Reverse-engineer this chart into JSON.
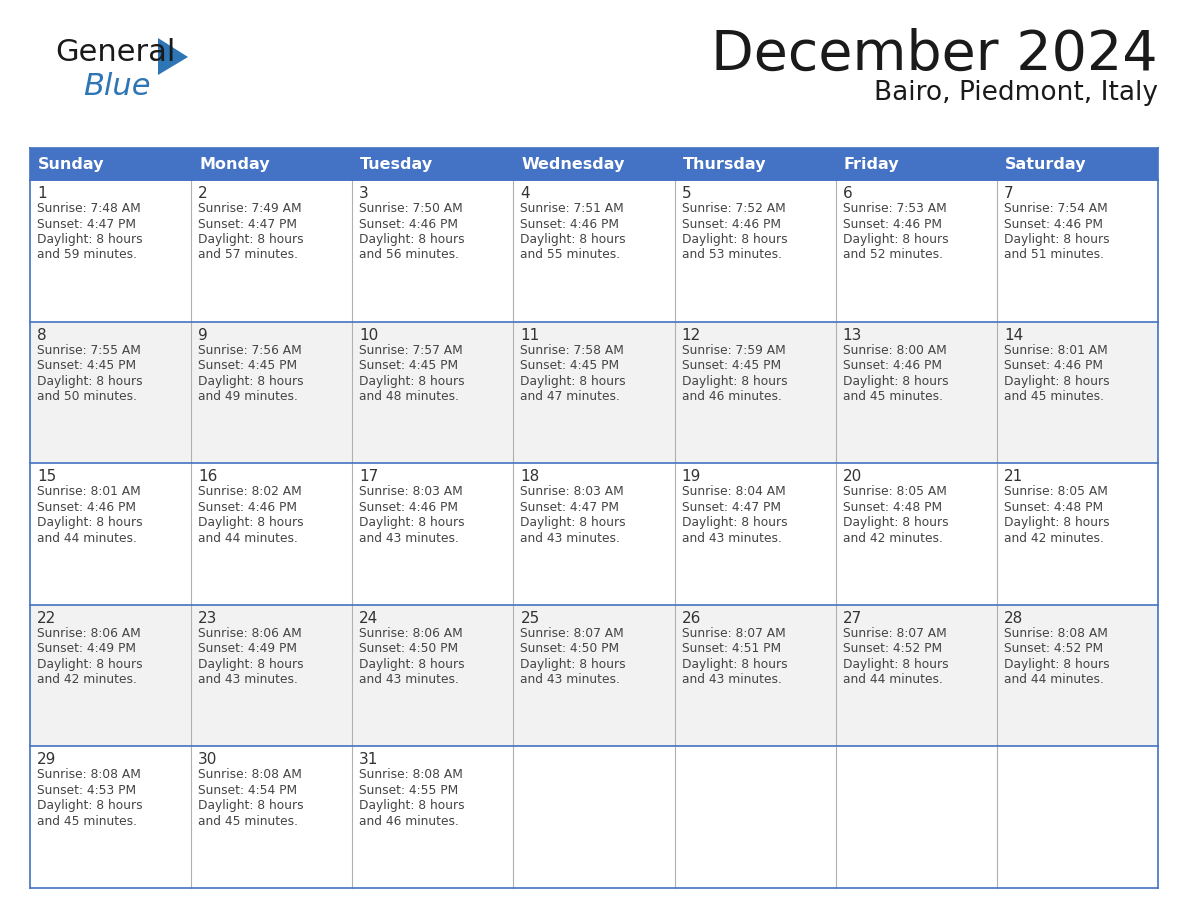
{
  "title": "December 2024",
  "subtitle": "Bairo, Piedmont, Italy",
  "header_bg_color": "#4472C4",
  "header_text_color": "#FFFFFF",
  "day_names": [
    "Sunday",
    "Monday",
    "Tuesday",
    "Wednesday",
    "Thursday",
    "Friday",
    "Saturday"
  ],
  "grid_line_color": "#4472C4",
  "cell_bg_even": "#FFFFFF",
  "cell_bg_odd": "#F2F2F2",
  "date_text_color": "#333333",
  "info_text_color": "#444444",
  "title_color": "#1a1a1a",
  "background_color": "#FFFFFF",
  "logo_black": "#1a1a1a",
  "logo_blue": "#2E75B6",
  "logo_triangle_color": "#2E75B6",
  "weeks": [
    [
      {
        "day": 1,
        "sunrise": "7:48 AM",
        "sunset": "4:47 PM",
        "dl1": "8 hours",
        "dl2": "and 59 minutes."
      },
      {
        "day": 2,
        "sunrise": "7:49 AM",
        "sunset": "4:47 PM",
        "dl1": "8 hours",
        "dl2": "and 57 minutes."
      },
      {
        "day": 3,
        "sunrise": "7:50 AM",
        "sunset": "4:46 PM",
        "dl1": "8 hours",
        "dl2": "and 56 minutes."
      },
      {
        "day": 4,
        "sunrise": "7:51 AM",
        "sunset": "4:46 PM",
        "dl1": "8 hours",
        "dl2": "and 55 minutes."
      },
      {
        "day": 5,
        "sunrise": "7:52 AM",
        "sunset": "4:46 PM",
        "dl1": "8 hours",
        "dl2": "and 53 minutes."
      },
      {
        "day": 6,
        "sunrise": "7:53 AM",
        "sunset": "4:46 PM",
        "dl1": "8 hours",
        "dl2": "and 52 minutes."
      },
      {
        "day": 7,
        "sunrise": "7:54 AM",
        "sunset": "4:46 PM",
        "dl1": "8 hours",
        "dl2": "and 51 minutes."
      }
    ],
    [
      {
        "day": 8,
        "sunrise": "7:55 AM",
        "sunset": "4:45 PM",
        "dl1": "8 hours",
        "dl2": "and 50 minutes."
      },
      {
        "day": 9,
        "sunrise": "7:56 AM",
        "sunset": "4:45 PM",
        "dl1": "8 hours",
        "dl2": "and 49 minutes."
      },
      {
        "day": 10,
        "sunrise": "7:57 AM",
        "sunset": "4:45 PM",
        "dl1": "8 hours",
        "dl2": "and 48 minutes."
      },
      {
        "day": 11,
        "sunrise": "7:58 AM",
        "sunset": "4:45 PM",
        "dl1": "8 hours",
        "dl2": "and 47 minutes."
      },
      {
        "day": 12,
        "sunrise": "7:59 AM",
        "sunset": "4:45 PM",
        "dl1": "8 hours",
        "dl2": "and 46 minutes."
      },
      {
        "day": 13,
        "sunrise": "8:00 AM",
        "sunset": "4:46 PM",
        "dl1": "8 hours",
        "dl2": "and 45 minutes."
      },
      {
        "day": 14,
        "sunrise": "8:01 AM",
        "sunset": "4:46 PM",
        "dl1": "8 hours",
        "dl2": "and 45 minutes."
      }
    ],
    [
      {
        "day": 15,
        "sunrise": "8:01 AM",
        "sunset": "4:46 PM",
        "dl1": "8 hours",
        "dl2": "and 44 minutes."
      },
      {
        "day": 16,
        "sunrise": "8:02 AM",
        "sunset": "4:46 PM",
        "dl1": "8 hours",
        "dl2": "and 44 minutes."
      },
      {
        "day": 17,
        "sunrise": "8:03 AM",
        "sunset": "4:46 PM",
        "dl1": "8 hours",
        "dl2": "and 43 minutes."
      },
      {
        "day": 18,
        "sunrise": "8:03 AM",
        "sunset": "4:47 PM",
        "dl1": "8 hours",
        "dl2": "and 43 minutes."
      },
      {
        "day": 19,
        "sunrise": "8:04 AM",
        "sunset": "4:47 PM",
        "dl1": "8 hours",
        "dl2": "and 43 minutes."
      },
      {
        "day": 20,
        "sunrise": "8:05 AM",
        "sunset": "4:48 PM",
        "dl1": "8 hours",
        "dl2": "and 42 minutes."
      },
      {
        "day": 21,
        "sunrise": "8:05 AM",
        "sunset": "4:48 PM",
        "dl1": "8 hours",
        "dl2": "and 42 minutes."
      }
    ],
    [
      {
        "day": 22,
        "sunrise": "8:06 AM",
        "sunset": "4:49 PM",
        "dl1": "8 hours",
        "dl2": "and 42 minutes."
      },
      {
        "day": 23,
        "sunrise": "8:06 AM",
        "sunset": "4:49 PM",
        "dl1": "8 hours",
        "dl2": "and 43 minutes."
      },
      {
        "day": 24,
        "sunrise": "8:06 AM",
        "sunset": "4:50 PM",
        "dl1": "8 hours",
        "dl2": "and 43 minutes."
      },
      {
        "day": 25,
        "sunrise": "8:07 AM",
        "sunset": "4:50 PM",
        "dl1": "8 hours",
        "dl2": "and 43 minutes."
      },
      {
        "day": 26,
        "sunrise": "8:07 AM",
        "sunset": "4:51 PM",
        "dl1": "8 hours",
        "dl2": "and 43 minutes."
      },
      {
        "day": 27,
        "sunrise": "8:07 AM",
        "sunset": "4:52 PM",
        "dl1": "8 hours",
        "dl2": "and 44 minutes."
      },
      {
        "day": 28,
        "sunrise": "8:08 AM",
        "sunset": "4:52 PM",
        "dl1": "8 hours",
        "dl2": "and 44 minutes."
      }
    ],
    [
      {
        "day": 29,
        "sunrise": "8:08 AM",
        "sunset": "4:53 PM",
        "dl1": "8 hours",
        "dl2": "and 45 minutes."
      },
      {
        "day": 30,
        "sunrise": "8:08 AM",
        "sunset": "4:54 PM",
        "dl1": "8 hours",
        "dl2": "and 45 minutes."
      },
      {
        "day": 31,
        "sunrise": "8:08 AM",
        "sunset": "4:55 PM",
        "dl1": "8 hours",
        "dl2": "and 46 minutes."
      },
      null,
      null,
      null,
      null
    ]
  ]
}
